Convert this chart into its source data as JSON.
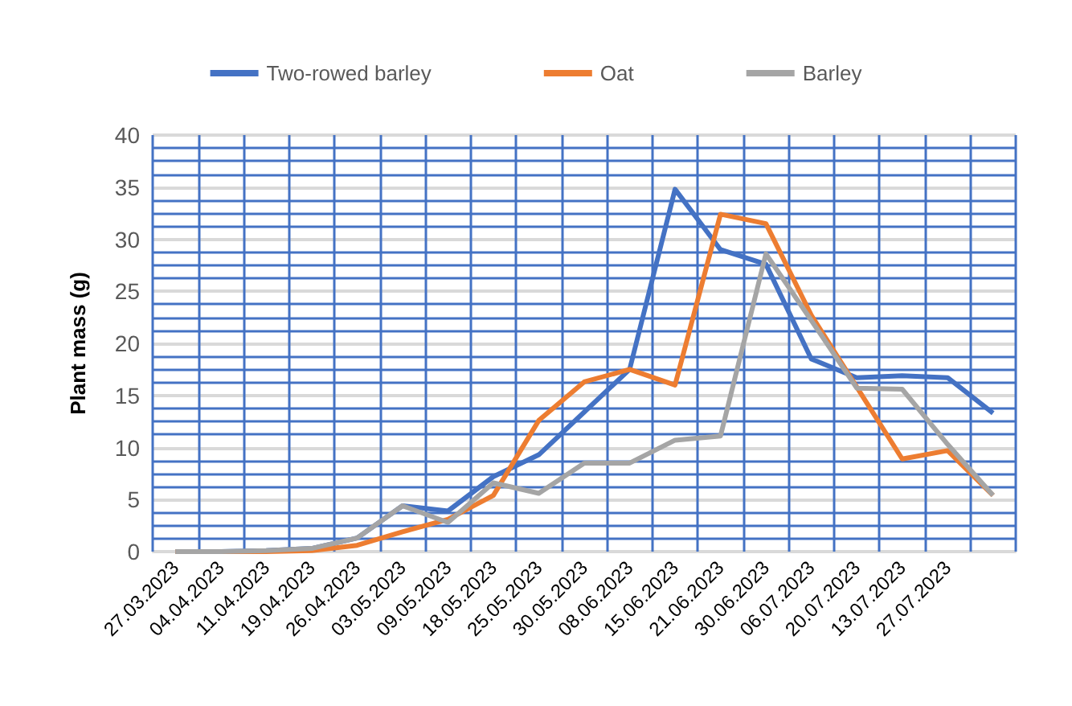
{
  "chart_data": {
    "type": "line",
    "ylabel": "Plant mass (g)",
    "categories": [
      "27.03.2023",
      "04.04.2023",
      "11.04.2023",
      "19.04.2023",
      "26.04.2023",
      "03.05.2023",
      "09.05.2023",
      "18.05.2023",
      "25.05.2023",
      "30.05.2023",
      "08.06.2023",
      "15.06.2023",
      "21.06.2023",
      "30.06.2023",
      "06.07.2023",
      "20.07.2023",
      "13.07.2023",
      "27.07.2023",
      null
    ],
    "series": [
      {
        "name": "Two-rowed barley",
        "color": "#4472c4",
        "values": [
          0,
          0,
          0.1,
          0.3,
          1.3,
          4.4,
          3.9,
          7.2,
          9.3,
          13.4,
          17.5,
          34.8,
          29.0,
          27.6,
          18.5,
          16.7,
          16.9,
          16.7,
          13.3
        ]
      },
      {
        "name": "Oat",
        "color": "#ed7d31",
        "values": [
          0,
          0,
          0,
          0.1,
          0.6,
          1.9,
          3.1,
          5.4,
          12.6,
          16.3,
          17.5,
          16.0,
          32.4,
          31.5,
          22.7,
          15.8,
          8.9,
          9.7,
          5.4
        ]
      },
      {
        "name": "Barley",
        "color": "#a5a5a5",
        "values": [
          0,
          0,
          0.1,
          0.3,
          1.3,
          4.4,
          2.8,
          6.6,
          5.6,
          8.5,
          8.5,
          10.7,
          11.1,
          28.6,
          22.2,
          15.7,
          15.6,
          10.3,
          5.4
        ]
      }
    ],
    "ylim": [
      0,
      40
    ],
    "yticks": [
      0,
      5,
      10,
      15,
      20,
      25,
      30,
      35,
      40
    ],
    "grid": true,
    "legend": "top",
    "marker": "none",
    "line_style": "solid"
  }
}
